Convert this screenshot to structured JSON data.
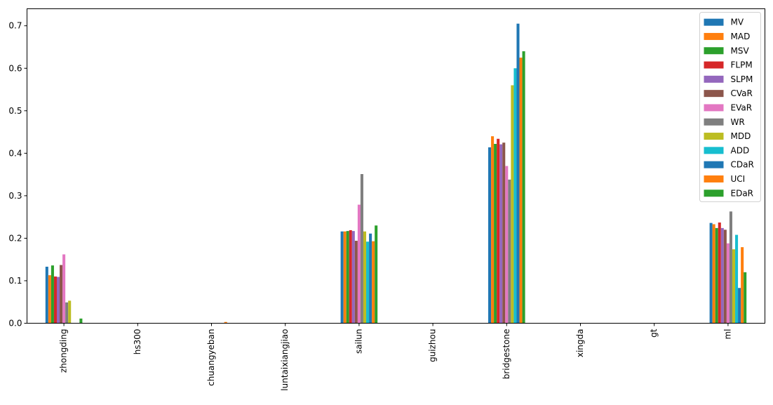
{
  "chart_data": {
    "type": "bar",
    "title": "",
    "xlabel": "",
    "ylabel": "",
    "ylim": [
      0,
      0.74
    ],
    "yticks": [
      0.0,
      0.1,
      0.2,
      0.3,
      0.4,
      0.5,
      0.6,
      0.7
    ],
    "ytick_labels": [
      "0.0",
      "0.1",
      "0.2",
      "0.3",
      "0.4",
      "0.5",
      "0.6",
      "0.7"
    ],
    "grid": false,
    "legend_position": "top-right",
    "categories": [
      "zhongding",
      "hs300",
      "chuangyeban",
      "luntaixiangjiao",
      "sailun",
      "guizhou",
      "bridgestone",
      "xingda",
      "gt",
      "ml"
    ],
    "series": [
      {
        "name": "MV",
        "color": "#1f77b4",
        "values": [
          0.133,
          0,
          0,
          0,
          0.216,
          0,
          0.414,
          0,
          0,
          0.236
        ]
      },
      {
        "name": "MAD",
        "color": "#ff7f0e",
        "values": [
          0.113,
          0,
          0,
          0,
          0.216,
          0,
          0.44,
          0,
          0,
          0.233
        ]
      },
      {
        "name": "MSV",
        "color": "#2ca02c",
        "values": [
          0.136,
          0,
          0,
          0,
          0.217,
          0,
          0.422,
          0,
          0,
          0.224
        ]
      },
      {
        "name": "FLPM",
        "color": "#d62728",
        "values": [
          0.11,
          0,
          0,
          0,
          0.219,
          0,
          0.434,
          0,
          0,
          0.237
        ]
      },
      {
        "name": "SLPM",
        "color": "#9467bd",
        "values": [
          0.109,
          0,
          0,
          0,
          0.217,
          0,
          0.421,
          0,
          0,
          0.224
        ]
      },
      {
        "name": "CVaR",
        "color": "#8c564b",
        "values": [
          0.137,
          0,
          0,
          0,
          0.194,
          0,
          0.425,
          0,
          0,
          0.22
        ]
      },
      {
        "name": "EVaR",
        "color": "#e377c2",
        "values": [
          0.162,
          0,
          0,
          0,
          0.279,
          0,
          0.37,
          0,
          0,
          0.188
        ]
      },
      {
        "name": "WR",
        "color": "#7f7f7f",
        "values": [
          0.049,
          0,
          0,
          0,
          0.351,
          0,
          0.338,
          0,
          0,
          0.263
        ]
      },
      {
        "name": "MDD",
        "color": "#bcbd22",
        "values": [
          0.053,
          0,
          0,
          0,
          0.216,
          0,
          0.56,
          0,
          0,
          0.174
        ]
      },
      {
        "name": "ADD",
        "color": "#17becf",
        "values": [
          0,
          0,
          0,
          0,
          0.192,
          0,
          0.6,
          0,
          0,
          0.208
        ]
      },
      {
        "name": "CDaR",
        "color": "#1f77b4",
        "values": [
          0,
          0,
          0,
          0,
          0.211,
          0,
          0.705,
          0,
          0,
          0.083
        ]
      },
      {
        "name": "UCI",
        "color": "#ff7f0e",
        "values": [
          0,
          0,
          0.003,
          0,
          0.193,
          0,
          0.625,
          0,
          0,
          0.179
        ]
      },
      {
        "name": "EDaR",
        "color": "#2ca02c",
        "values": [
          0.011,
          0,
          0,
          0,
          0.23,
          0,
          0.64,
          0,
          0,
          0.12
        ]
      }
    ]
  }
}
